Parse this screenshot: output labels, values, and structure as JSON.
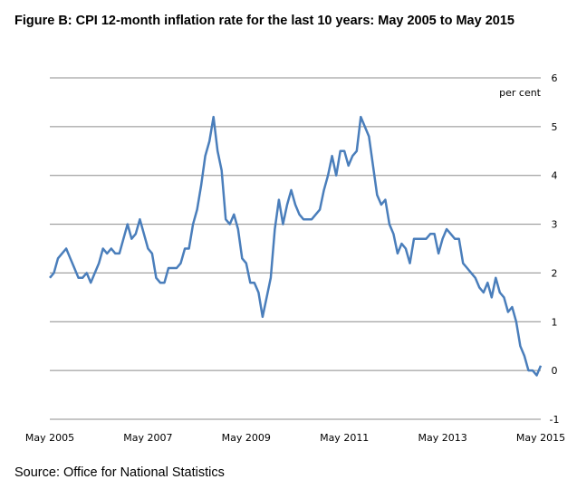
{
  "chart_data": {
    "type": "line",
    "title": "Figure B: CPI 12-month inflation rate for the last 10 years: May 2005 to May 2015",
    "ylabel": "per cent",
    "source": "Source: Office for National Statistics",
    "ylim": [
      -1,
      6
    ],
    "yticks": [
      "-1",
      "0",
      "1",
      "2",
      "3",
      "4",
      "5",
      "6"
    ],
    "xticks": [
      "May 2005",
      "May 2007",
      "May 2009",
      "May 2011",
      "May 2013",
      "May 2015"
    ],
    "x_start": "May 2005",
    "x_end": "May 2015",
    "grid": true,
    "line_color": "#4a7ebb",
    "series": [
      {
        "values": [
          1.9,
          2.0,
          2.3,
          2.4,
          2.5,
          2.3,
          2.1,
          1.9,
          1.9,
          2.0,
          1.8,
          2.0,
          2.2,
          2.5,
          2.4,
          2.5,
          2.4,
          2.4,
          2.7,
          3.0,
          2.7,
          2.8,
          3.1,
          2.8,
          2.5,
          2.4,
          1.9,
          1.8,
          1.8,
          2.1,
          2.1,
          2.1,
          2.2,
          2.5,
          2.5,
          3.0,
          3.3,
          3.8,
          4.4,
          4.7,
          5.2,
          4.5,
          4.1,
          3.1,
          3.0,
          3.2,
          2.9,
          2.3,
          2.2,
          1.8,
          1.8,
          1.6,
          1.1,
          1.5,
          1.9,
          2.9,
          3.5,
          3.0,
          3.4,
          3.7,
          3.4,
          3.2,
          3.1,
          3.1,
          3.1,
          3.2,
          3.3,
          3.7,
          4.0,
          4.4,
          4.0,
          4.5,
          4.5,
          4.2,
          4.4,
          4.5,
          5.2,
          5.0,
          4.8,
          4.2,
          3.6,
          3.4,
          3.5,
          3.0,
          2.8,
          2.4,
          2.6,
          2.5,
          2.2,
          2.7,
          2.7,
          2.7,
          2.7,
          2.8,
          2.8,
          2.4,
          2.7,
          2.9,
          2.8,
          2.7,
          2.7,
          2.2,
          2.1,
          2.0,
          1.9,
          1.7,
          1.6,
          1.8,
          1.5,
          1.9,
          1.6,
          1.5,
          1.2,
          1.3,
          1.0,
          0.5,
          0.3,
          0.0,
          0.0,
          -0.1,
          0.1
        ]
      }
    ]
  }
}
